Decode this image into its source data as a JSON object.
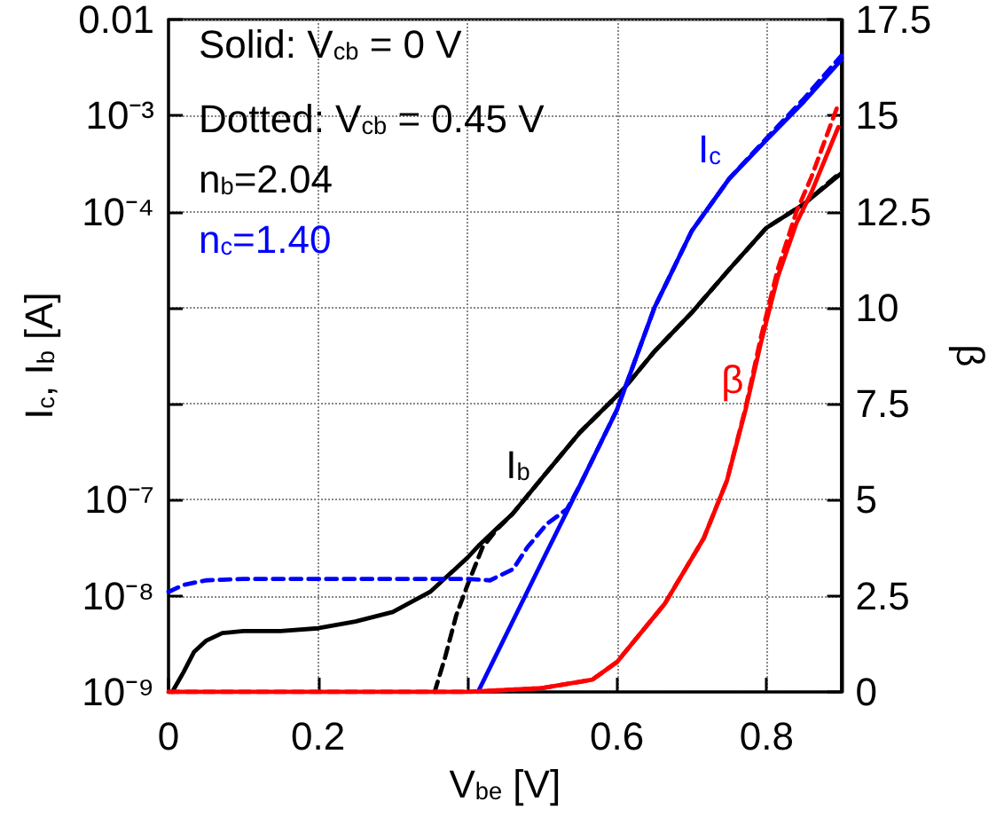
{
  "chart_data": {
    "type": "line",
    "xlabel": "V$_{be}$ [V]",
    "ylabel": "I$_{c}$, I$_{b}$ [A]",
    "y2label": "β",
    "log": "y",
    "grid": true,
    "marker": "none",
    "xlim": [
      0,
      0.9
    ],
    "xticks": [
      0,
      0.2,
      {
        "value": 0.4,
        "label": null
      },
      0.6,
      0.8
    ],
    "ylim": [
      1e-09,
      0.01
    ],
    "yticks": [
      {
        "value": 1e-09,
        "label": "10⁻⁹"
      },
      {
        "value": 1e-08,
        "label": "10⁻⁸"
      },
      {
        "value": 1e-07,
        "label": "10⁻⁷"
      },
      {
        "value": 1e-06,
        "label": null
      },
      {
        "value": 1e-05,
        "label": null
      },
      {
        "value": 0.0001,
        "label": "10⁻⁴"
      },
      {
        "value": 0.001,
        "label": "10⁻³"
      },
      0.01
    ],
    "y2lim": [
      0,
      17.5
    ],
    "y2ticks": [
      0,
      2.5,
      5,
      7.5,
      10,
      12.5,
      15,
      17.5
    ],
    "annotations": [
      "Solid: V$_{cb}$ = 0 V",
      "Dotted: V$_{cb}$ = 0.45 V",
      "n$_{b}$=2.04",
      "n$_{c}$=1.40",
      "I$_{c}$",
      "I$_{b}$",
      "β"
    ],
    "series": [
      {
        "color": "#000000",
        "line_style": "solid",
        "x": [
          0.005,
          0.02,
          0.034,
          0.05,
          0.072,
          0.1,
          0.15,
          0.2,
          0.25,
          0.3,
          0.35,
          0.4,
          0.416,
          0.44,
          0.46,
          0.5,
          0.55,
          0.608,
          0.65,
          0.7,
          0.75,
          0.8,
          0.85,
          0.9
        ],
        "values": [
          1e-09,
          1.6e-09,
          2.6e-09,
          3.4e-09,
          4.1e-09,
          4.3e-09,
          4.3e-09,
          4.6e-09,
          5.4e-09,
          6.8e-09,
          1.1e-08,
          2.5e-08,
          3.4e-08,
          5.1e-08,
          7.1e-08,
          1.7e-07,
          5e-07,
          1.4e-06,
          3.5e-06,
          8.9e-06,
          2.5e-05,
          6.8e-05,
          0.00012,
          0.00025
        ]
      },
      {
        "color": "#000000",
        "line_style": "dashed",
        "x": [
          0.356,
          0.37,
          0.385,
          0.4,
          0.42,
          0.44,
          0.46,
          0.5,
          0.55,
          0.608,
          0.65,
          0.7,
          0.75,
          0.8,
          0.85,
          0.9
        ],
        "values": [
          1e-09,
          2.3e-09,
          6.3e-09,
          1.3e-08,
          3.2e-08,
          5e-08,
          7.1e-08,
          1.7e-07,
          5e-07,
          1.4e-06,
          3.5e-06,
          8.9e-06,
          2.5e-05,
          6.8e-05,
          0.00012,
          0.00026
        ]
      },
      {
        "color": "#0000ff",
        "line_style": "solid",
        "x": [
          0.414,
          0.5,
          0.55,
          0.6,
          0.65,
          0.7,
          0.75,
          0.8,
          0.85,
          0.9
        ],
        "values": [
          1e-09,
          2.3e-08,
          1.4e-07,
          8.7e-07,
          1e-05,
          6.3e-05,
          0.00022,
          0.00056,
          0.0014,
          0.0038
        ]
      },
      {
        "color": "#0000ff",
        "line_style": "dashed",
        "x": [
          0,
          0.02,
          0.05,
          0.1,
          0.2,
          0.3,
          0.35,
          0.4,
          0.43,
          0.461,
          0.48,
          0.506,
          0.533,
          0.55,
          0.6,
          0.65,
          0.7,
          0.75,
          0.8,
          0.85,
          0.9
        ],
        "values": [
          1.1e-08,
          1.3e-08,
          1.45e-08,
          1.5e-08,
          1.5e-08,
          1.5e-08,
          1.5e-08,
          1.5e-08,
          1.45e-08,
          1.9e-08,
          3.2e-08,
          5.6e-08,
          8e-08,
          1.4e-07,
          8.7e-07,
          1e-05,
          6.3e-05,
          0.00022,
          0.00058,
          0.0015,
          0.0042
        ]
      },
      {
        "color": "#ff0000",
        "line_style": "solid",
        "axis": "y2",
        "x": [
          0,
          0.2,
          0.4,
          0.5,
          0.567,
          0.6,
          0.664,
          0.716,
          0.747,
          0.772,
          0.792,
          0.815,
          0.84,
          0.86,
          0.896
        ],
        "values": [
          0,
          0,
          0,
          0.1,
          0.32,
          0.78,
          2.3,
          4.0,
          5.5,
          7.35,
          9.05,
          10.8,
          12.2,
          13.0,
          14.7
        ]
      },
      {
        "color": "#ff0000",
        "line_style": "dashed",
        "axis": "y2",
        "x": [
          0,
          0.2,
          0.4,
          0.5,
          0.567,
          0.6,
          0.664,
          0.716,
          0.747,
          0.772,
          0.792,
          0.815,
          0.84,
          0.86,
          0.896
        ],
        "values": [
          0,
          0,
          0,
          0.1,
          0.32,
          0.78,
          2.3,
          4.0,
          5.5,
          7.4,
          9.2,
          11.0,
          12.5,
          13.4,
          15.3
        ]
      }
    ]
  }
}
